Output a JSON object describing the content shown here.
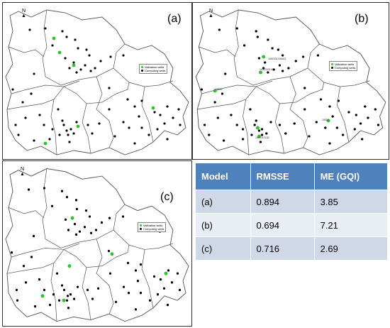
{
  "panels": [
    {
      "label": "(a)",
      "north": "N",
      "legend": {
        "validation": "Validation wells",
        "computing": "Computing wells"
      },
      "well_labels": []
    },
    {
      "label": "(b)",
      "north": "N",
      "legend": {
        "validation": "Validation wells",
        "computing": "Computing wells"
      },
      "well_labels": [
        "1650331206603",
        "1650303141",
        "165581",
        "16516",
        "1650313150"
      ]
    },
    {
      "label": "(c)",
      "north": "N",
      "legend": {
        "validation": "Validation wells",
        "computing": "Computing wells"
      },
      "well_labels": []
    }
  ],
  "colors": {
    "validation": "#22cc22",
    "computing": "#000000",
    "boundary": "#555555",
    "table_header": "#4f81bd"
  },
  "table": {
    "headers": [
      "Model",
      "RMSSE",
      "ME (GQI)"
    ],
    "rows": [
      [
        "(a)",
        "0.894",
        "3.85"
      ],
      [
        "(b)",
        "0.694",
        "7.21"
      ],
      [
        "(c)",
        "0.716",
        "2.69"
      ]
    ]
  }
}
